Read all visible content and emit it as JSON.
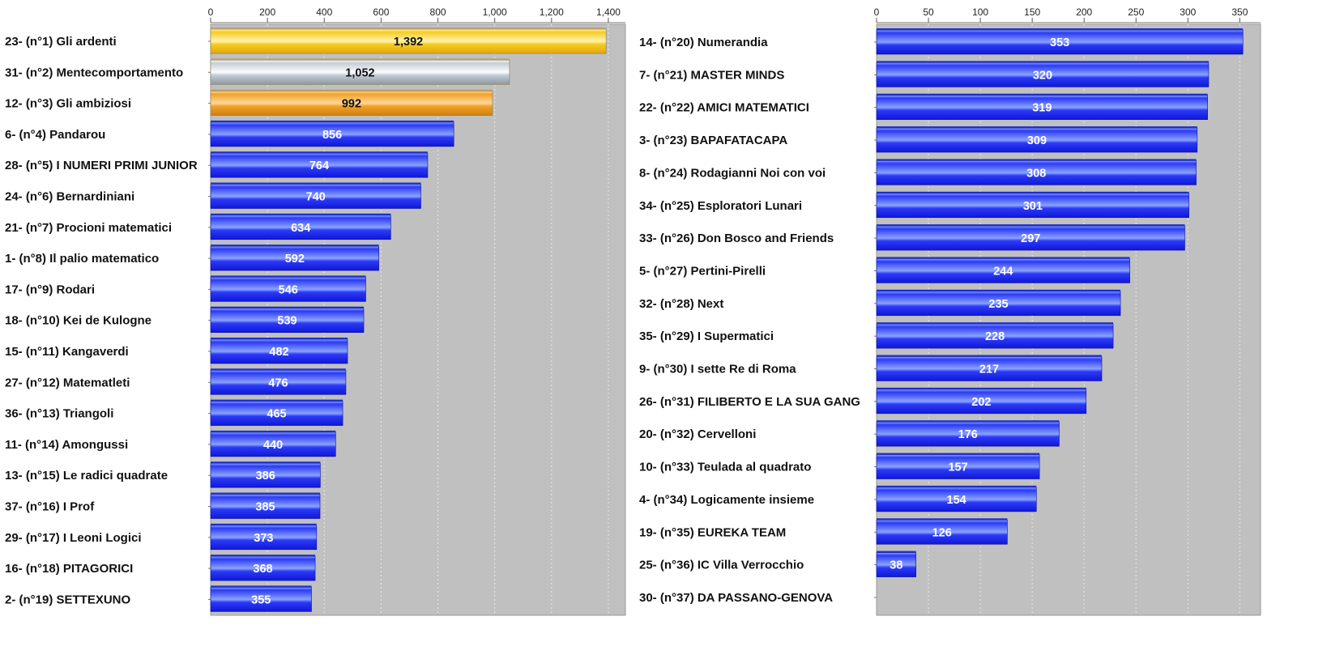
{
  "chart_data": [
    {
      "type": "bar",
      "orientation": "horizontal",
      "xlim": [
        0,
        1460
      ],
      "ticks": [
        0,
        200,
        400,
        600,
        800,
        1000,
        1200,
        1400
      ],
      "tick_labels": [
        "0",
        "200",
        "400",
        "600",
        "800",
        "1,000",
        "1,200",
        "1,400"
      ],
      "grid": true,
      "plot_background": "#c0c0c0",
      "categories": [
        "23- (n°1) Gli ardenti",
        "31- (n°2) Mentecomportamento",
        "12- (n°3) Gli ambiziosi",
        "6- (n°4) Pandarou",
        "28- (n°5) I NUMERI PRIMI JUNIOR",
        "24- (n°6) Bernardiniani",
        "21- (n°7) Procioni matematici",
        "1- (n°8) Il palio matematico",
        "17- (n°9) Rodari",
        "18- (n°10) Kei de Kulogne",
        "15- (n°11) Kangaverdi",
        "27- (n°12) Matematleti",
        "36- (n°13) Triangoli",
        "11- (n°14) Amongussi",
        "13- (n°15) Le radici quadrate",
        "37- (n°16) I Prof",
        "29- (n°17) I Leoni Logici",
        "16- (n°18) PITAGORICI",
        "2- (n°19) SETTEXUNO"
      ],
      "values": [
        1392,
        1052,
        992,
        856,
        764,
        740,
        634,
        592,
        546,
        539,
        482,
        476,
        465,
        440,
        386,
        385,
        373,
        368,
        355
      ],
      "value_labels": [
        "1,392",
        "1,052",
        "992",
        "856",
        "764",
        "740",
        "634",
        "592",
        "546",
        "539",
        "482",
        "476",
        "465",
        "440",
        "386",
        "385",
        "373",
        "368",
        "355"
      ],
      "bar_colors": [
        "gold",
        "silver",
        "bronze",
        "blue",
        "blue",
        "blue",
        "blue",
        "blue",
        "blue",
        "blue",
        "blue",
        "blue",
        "blue",
        "blue",
        "blue",
        "blue",
        "blue",
        "blue",
        "blue"
      ]
    },
    {
      "type": "bar",
      "orientation": "horizontal",
      "xlim": [
        0,
        370
      ],
      "ticks": [
        0,
        50,
        100,
        150,
        200,
        250,
        300,
        350
      ],
      "tick_labels": [
        "0",
        "50",
        "100",
        "150",
        "200",
        "250",
        "300",
        "350"
      ],
      "grid": true,
      "plot_background": "#c0c0c0",
      "categories": [
        "14- (n°20) Numerandia",
        "7- (n°21) MASTER MINDS",
        "22- (n°22) AMICI MATEMATICI",
        "3- (n°23) BAPAFATACAPA",
        "8- (n°24) Rodagianni Noi con voi",
        "34- (n°25) Esploratori Lunari",
        "33- (n°26) Don Bosco and Friends",
        "5- (n°27) Pertini-Pirelli",
        "32- (n°28) Next",
        "35- (n°29) I Supermatici",
        "9- (n°30) I sette Re di Roma",
        "26- (n°31) FILIBERTO E LA SUA GANG",
        "20- (n°32) Cervelloni",
        "10- (n°33) Teulada al quadrato",
        "4- (n°34) Logicamente insieme",
        "19- (n°35) EUREKA TEAM",
        "25- (n°36) IC Villa Verrocchio",
        "30- (n°37) DA PASSANO-GENOVA"
      ],
      "values": [
        353,
        320,
        319,
        309,
        308,
        301,
        297,
        244,
        235,
        228,
        217,
        202,
        176,
        157,
        154,
        126,
        38,
        0
      ],
      "value_labels": [
        "353",
        "320",
        "319",
        "309",
        "308",
        "301",
        "297",
        "244",
        "235",
        "228",
        "217",
        "202",
        "176",
        "157",
        "154",
        "126",
        "38",
        ""
      ],
      "bar_colors": [
        "blue",
        "blue",
        "blue",
        "blue",
        "blue",
        "blue",
        "blue",
        "blue",
        "blue",
        "blue",
        "blue",
        "blue",
        "blue",
        "blue",
        "blue",
        "blue",
        "blue",
        "blue"
      ]
    }
  ],
  "colors": {
    "gold": [
      "#fff4b0",
      "#f6cc25",
      "#e3a808"
    ],
    "silver": [
      "#fbfdfe",
      "#c4cdd6",
      "#8c97a3"
    ],
    "bronze": [
      "#ffd79a",
      "#f0a22a",
      "#d07f0c"
    ],
    "blue": [
      "#8aa2ff",
      "#2b3af5",
      "#0f17d8"
    ]
  }
}
